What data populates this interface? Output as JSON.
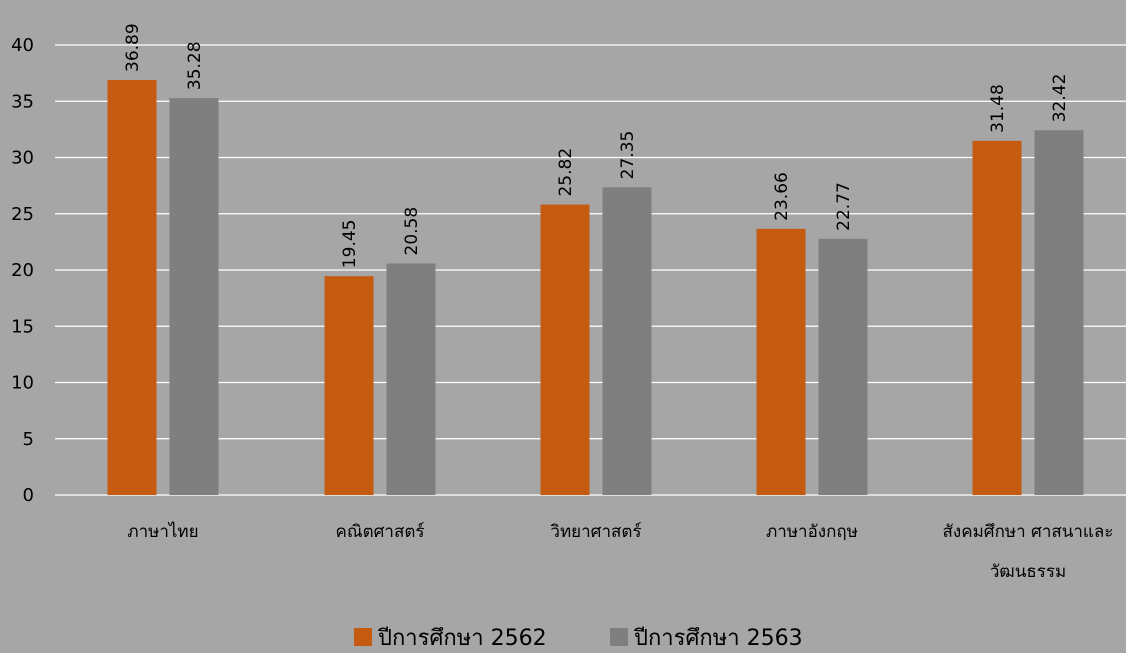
{
  "chart_data": {
    "type": "bar",
    "title": "",
    "xlabel": "",
    "ylabel": "",
    "categories": [
      [
        "ภาษาไทย"
      ],
      [
        "คณิตศาสตร์"
      ],
      [
        "วิทยาศาสตร์"
      ],
      [
        "ภาษาอังกฤษ"
      ],
      [
        "สังคมศึกษา ศาสนาและ",
        "วัฒนธรรม"
      ]
    ],
    "series": [
      {
        "name": "ปีการศึกษา 2562",
        "color": "#c55a11",
        "values": [
          36.89,
          19.45,
          25.82,
          23.66,
          31.48
        ]
      },
      {
        "name": "ปีการศึกษา 2563",
        "color": "#7f7f7f",
        "values": [
          35.28,
          20.58,
          27.35,
          22.77,
          32.42
        ]
      }
    ],
    "ylim": [
      0,
      40
    ],
    "yticks": [
      0,
      5,
      10,
      15,
      20,
      25,
      30,
      35,
      40
    ],
    "grid": true,
    "gridline_color": "#ffffff",
    "legend_position": "bottom"
  }
}
